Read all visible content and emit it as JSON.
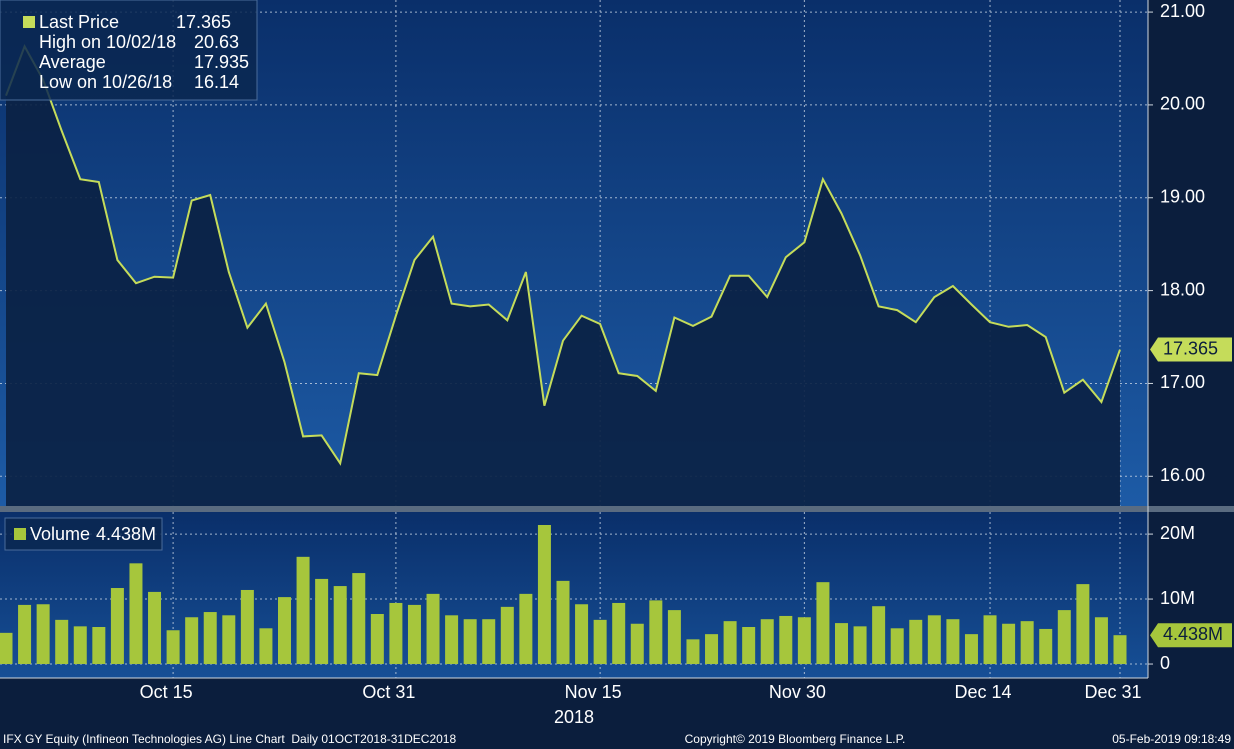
{
  "chart_data": [
    {
      "type": "area",
      "series": [
        {
          "name": "Last Price",
          "color": "#c5dc5a",
          "values": [
            20.1,
            20.63,
            20.27,
            19.72,
            19.2,
            19.17,
            18.33,
            18.08,
            18.15,
            18.14,
            18.97,
            19.03,
            18.2,
            17.6,
            17.86,
            17.23,
            16.43,
            16.44,
            16.14,
            17.11,
            17.09,
            17.73,
            18.33,
            18.58,
            17.86,
            17.83,
            17.85,
            17.68,
            18.2,
            16.76,
            17.46,
            17.73,
            17.64,
            17.11,
            17.08,
            16.92,
            17.71,
            17.62,
            17.72,
            18.16,
            18.16,
            17.93,
            18.36,
            18.52,
            19.2,
            18.83,
            18.38,
            17.83,
            17.79,
            17.66,
            17.93,
            18.05,
            17.85,
            17.66,
            17.61,
            17.63,
            17.5,
            16.9,
            17.04,
            16.8,
            17.365
          ]
        }
      ],
      "categories": [
        null,
        null,
        null,
        null,
        null,
        null,
        null,
        null,
        null,
        "Oct 15",
        null,
        null,
        null,
        null,
        null,
        null,
        null,
        null,
        null,
        null,
        null,
        "Oct 31",
        null,
        null,
        null,
        null,
        null,
        null,
        null,
        null,
        null,
        null,
        "Nov 15",
        null,
        null,
        null,
        null,
        null,
        null,
        null,
        null,
        null,
        null,
        "Nov 30",
        null,
        null,
        null,
        null,
        null,
        null,
        null,
        null,
        null,
        "Dec 14",
        null,
        null,
        null,
        null,
        null,
        null,
        "Dec 31"
      ],
      "ylim": [
        15.68,
        21.13
      ],
      "yticks": [
        {
          "value": 16,
          "label": "16.00"
        },
        {
          "value": 17,
          "label": "17.00"
        },
        {
          "value": 18,
          "label": "18.00"
        },
        {
          "value": 19,
          "label": "19.00"
        },
        {
          "value": 20,
          "label": "20.00"
        },
        {
          "value": 21,
          "label": "21.00"
        }
      ],
      "grid": true,
      "legend": [
        {
          "label": "High on 10/02/18",
          "value": 20.63
        },
        {
          "label": "Average",
          "value": 17.935
        },
        {
          "label": "Low on 10/26/18",
          "value": 16.14
        }
      ]
    },
    {
      "type": "bar",
      "series": [
        {
          "name": "Volume",
          "color": "#a6c63c",
          "values": [
            4.8,
            9.1,
            9.2,
            6.8,
            5.8,
            5.7,
            11.7,
            15.5,
            11.1,
            5.2,
            7.2,
            8.0,
            7.5,
            11.4,
            5.5,
            10.3,
            16.5,
            13.1,
            12.0,
            14.0,
            7.7,
            9.4,
            9.1,
            10.8,
            7.5,
            6.9,
            6.9,
            8.8,
            10.8,
            21.4,
            12.8,
            9.2,
            6.8,
            9.4,
            6.2,
            9.8,
            8.3,
            3.8,
            4.6,
            6.6,
            5.7,
            6.9,
            7.4,
            7.2,
            12.6,
            6.3,
            5.8,
            8.9,
            5.5,
            6.8,
            7.5,
            6.9,
            4.6,
            7.5,
            6.2,
            6.6,
            5.4,
            8.3,
            12.3,
            7.2,
            4.438
          ],
          "value_labels": [
            null,
            null,
            null,
            null,
            null,
            null,
            null,
            null,
            null,
            null,
            null,
            null,
            null,
            null,
            null,
            null,
            null,
            null,
            null,
            null,
            null,
            null,
            null,
            null,
            null,
            null,
            null,
            null,
            null,
            null,
            null,
            null,
            null,
            null,
            null,
            null,
            null,
            null,
            null,
            null,
            null,
            null,
            null,
            null,
            null,
            null,
            null,
            null,
            null,
            null,
            null,
            null,
            null,
            null,
            null,
            null,
            null,
            null,
            null,
            null,
            "4.438M"
          ]
        }
      ],
      "categories": [
        null,
        null,
        null,
        null,
        null,
        null,
        null,
        null,
        null,
        "Oct 15",
        null,
        null,
        null,
        null,
        null,
        null,
        null,
        null,
        null,
        null,
        null,
        "Oct 31",
        null,
        null,
        null,
        null,
        null,
        null,
        null,
        null,
        null,
        null,
        "Nov 15",
        null,
        null,
        null,
        null,
        null,
        null,
        null,
        null,
        null,
        null,
        "Nov 30",
        null,
        null,
        null,
        null,
        null,
        null,
        null,
        null,
        null,
        "Dec 14",
        null,
        null,
        null,
        null,
        null,
        null,
        "Dec 31"
      ],
      "ylim": [
        -2.15,
        23.4
      ],
      "yticks": [
        0,
        {
          "value": 10,
          "label": "10M"
        },
        {
          "value": 20,
          "label": "20M"
        }
      ],
      "grid": true,
      "x_label": "2018"
    }
  ],
  "footer": {
    "left": "IFX GY Equity (Infineon Technologies AG) Line Chart  Daily 01OCT2018-31DEC2018",
    "center": "Copyright© 2019 Bloomberg Finance L.P.",
    "right": "05-Feb-2019 09:18:49"
  }
}
